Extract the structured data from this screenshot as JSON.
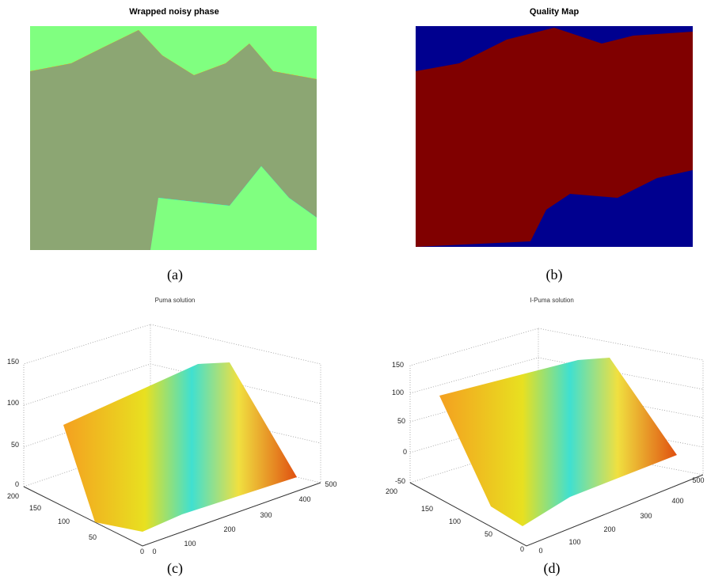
{
  "panels": [
    {
      "title": "Wrapped noisy phase",
      "caption": "(a)"
    },
    {
      "title": "Quality Map",
      "caption": "(b)"
    },
    {
      "title": "Puma solution",
      "caption": "(c)",
      "zticks": [
        0,
        50,
        100,
        150
      ],
      "yticks": [
        0,
        50,
        100,
        150,
        200
      ],
      "xticks": [
        0,
        100,
        200,
        300,
        400,
        500
      ]
    },
    {
      "title": "I-Puma solution",
      "caption": "(d)",
      "zticks": [
        -50,
        0,
        50,
        100,
        150
      ],
      "yticks": [
        0,
        50,
        100,
        150,
        200
      ],
      "xticks": [
        0,
        100,
        200,
        300,
        400,
        500
      ]
    }
  ]
}
